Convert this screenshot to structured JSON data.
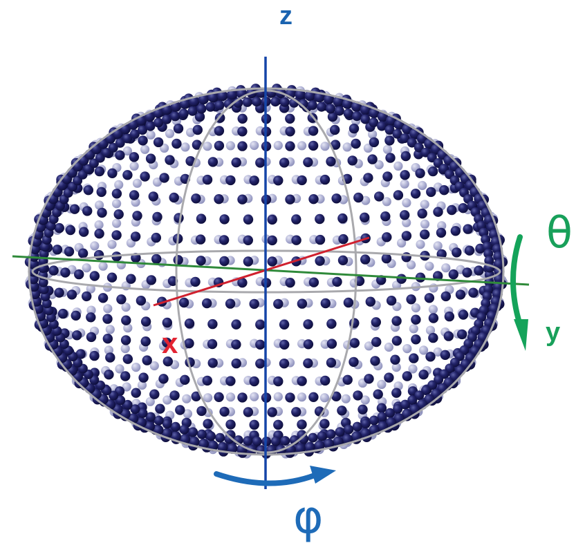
{
  "labels": {
    "z_axis": "z",
    "y_axis": "y",
    "x_axis": "x",
    "theta": "θ",
    "phi": "φ"
  },
  "colors": {
    "z_axis": "#1545a8",
    "z_label": "#1a63b0",
    "y_axis": "#2f8a3a",
    "y_label": "#18a05a",
    "x_axis": "#d0202e",
    "phi_arrow": "#1e6bb8",
    "theta_arrow": "#14a35a",
    "sphere_dark": "#1c1c5e",
    "sphere_light": "#aeb0d4",
    "wire": "#a9a9ad"
  }
}
